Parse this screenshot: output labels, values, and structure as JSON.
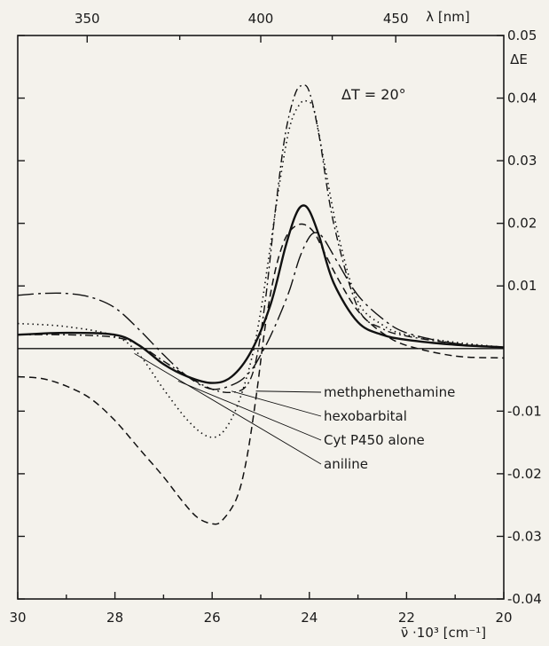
{
  "chart_data": {
    "type": "line",
    "title": "",
    "annotation": "ΔT = 20°",
    "xlabel": "ν̄ ·10³ [cm⁻¹]",
    "ylabel": "ΔE",
    "x2label": "λ [nm]",
    "xlim": [
      30,
      20
    ],
    "ylim": [
      -0.04,
      0.05
    ],
    "x_ticks": [
      "30",
      "28",
      "26",
      "24",
      "22",
      "20"
    ],
    "x2_ticks": [
      "350",
      "400",
      "450"
    ],
    "y_ticks": [
      "0.05",
      "0.04",
      "0.03",
      "0.02",
      "0.01",
      "-0.01",
      "-0.02",
      "-0.03",
      "-0.04"
    ],
    "grid": false,
    "series": [
      {
        "name": "methphenethamine",
        "style": "solid",
        "x": [
          30,
          29,
          28,
          27.5,
          27,
          26.5,
          26,
          25.6,
          25.2,
          24.8,
          24.5,
          24.3,
          24.15,
          24.0,
          23.8,
          23.5,
          23.0,
          22.5,
          22.0,
          21.0,
          20.0
        ],
        "y": [
          0.0022,
          0.0025,
          0.0022,
          0.0005,
          -0.0025,
          -0.0045,
          -0.0055,
          -0.0045,
          -0.0005,
          0.007,
          0.016,
          0.021,
          0.0228,
          0.022,
          0.018,
          0.0105,
          0.0042,
          0.0022,
          0.0014,
          0.0006,
          0.0002
        ]
      },
      {
        "name": "hexobarbital",
        "style": "dashdot",
        "x": [
          30,
          29,
          28,
          27.5,
          27,
          26.5,
          26,
          25.6,
          25.3,
          25.1,
          24.9,
          24.7,
          24.5,
          24.3,
          24.15,
          24.0,
          23.8,
          23.5,
          23.0,
          22.5,
          22.0,
          21.0,
          20.0
        ],
        "y": [
          0.0022,
          0.0022,
          0.0018,
          0.0005,
          -0.002,
          -0.0045,
          -0.0065,
          -0.007,
          -0.006,
          -0.002,
          0.008,
          0.022,
          0.034,
          0.0405,
          0.042,
          0.041,
          0.034,
          0.02,
          0.0065,
          0.0032,
          0.002,
          0.0008,
          0.0002
        ]
      },
      {
        "name": "Cyt P450 alone",
        "style": "dotted",
        "x": [
          30,
          29,
          28,
          27.5,
          27,
          26.5,
          26.1,
          25.8,
          25.5,
          25.2,
          25.0,
          24.8,
          24.6,
          24.4,
          24.2,
          24.05,
          23.9,
          23.7,
          23.4,
          23.0,
          22.5,
          22.0,
          21.0,
          20.0
        ],
        "y": [
          0.004,
          0.0035,
          0.002,
          -0.001,
          -0.0065,
          -0.0115,
          -0.014,
          -0.0135,
          -0.0095,
          -0.002,
          0.006,
          0.0165,
          0.027,
          0.0355,
          0.039,
          0.0395,
          0.038,
          0.03,
          0.018,
          0.0075,
          0.0038,
          0.0022,
          0.001,
          0.0002
        ]
      },
      {
        "name": "aniline",
        "style": "dashed",
        "x": [
          30,
          29.5,
          29,
          28.5,
          28,
          27.5,
          27,
          26.6,
          26.3,
          26.0,
          25.8,
          25.5,
          25.3,
          25.1,
          24.9,
          24.7,
          24.5,
          24.3,
          24.1,
          23.9,
          23.7,
          23.4,
          23.0,
          22.5,
          22.0,
          21.0,
          20.0
        ],
        "y": [
          -0.0045,
          -0.0048,
          -0.006,
          -0.008,
          -0.0115,
          -0.016,
          -0.0205,
          -0.0245,
          -0.027,
          -0.028,
          -0.0275,
          -0.024,
          -0.018,
          -0.008,
          0.004,
          0.0125,
          0.0175,
          0.0195,
          0.0198,
          0.0185,
          0.0155,
          0.011,
          0.006,
          0.0025,
          0.0005,
          -0.0012,
          -0.0015
        ]
      },
      {
        "name": "",
        "style": "longdashdot",
        "x": [
          30,
          29.5,
          29,
          28.5,
          28,
          27.5,
          27,
          26.5,
          26.0,
          25.5,
          25.2,
          25.0,
          24.8,
          24.6,
          24.4,
          24.2,
          24.0,
          23.85,
          23.7,
          23.4,
          23.0,
          22.5,
          22.0,
          21.0,
          20.0
        ],
        "y": [
          0.0085,
          0.0088,
          0.0088,
          0.0082,
          0.0065,
          0.003,
          -0.001,
          -0.0045,
          -0.0065,
          -0.0055,
          -0.0035,
          -0.001,
          0.002,
          0.0055,
          0.0095,
          0.0145,
          0.0178,
          0.0185,
          0.0175,
          0.0135,
          0.0085,
          0.0048,
          0.0025,
          0.0008,
          0.0002
        ]
      }
    ]
  }
}
